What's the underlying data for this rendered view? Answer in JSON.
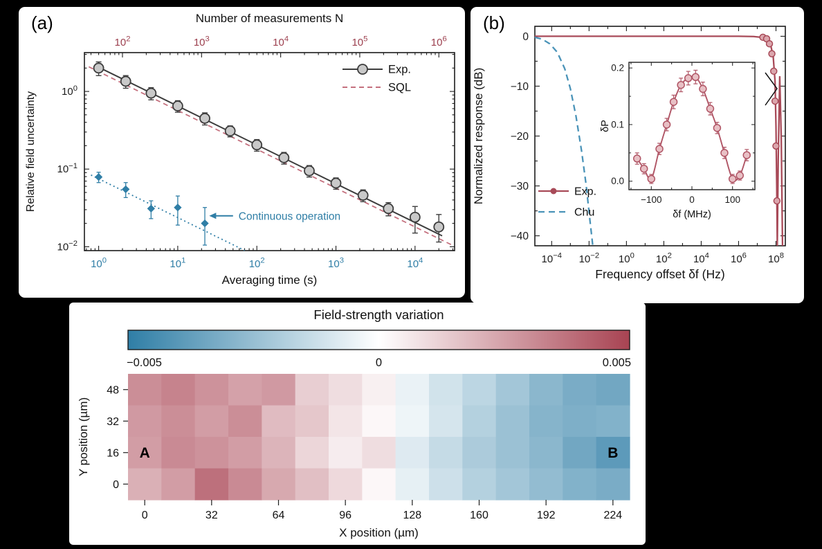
{
  "panels": {
    "a": {
      "label": "(a)"
    },
    "b": {
      "label": "(b)"
    }
  },
  "chart_data": [
    {
      "id": "a",
      "type": "scatter",
      "xlabel": "Averaging time (s)",
      "ylabel": "Relative field uncertainty",
      "top_axis_label": "Number of measurements N",
      "x_scale": "log",
      "y_scale": "log",
      "xlim_log": [
        -0.18,
        4.5
      ],
      "ylim_log": [
        -2.05,
        0.5
      ],
      "x_ticks_exp": [
        0,
        1,
        2,
        3,
        4
      ],
      "y_ticks_exp": [
        0,
        -1,
        -2
      ],
      "top_ticks": {
        "exps": [
          2,
          3,
          4,
          5,
          6
        ],
        "measurements_per_second": 50
      },
      "colors": {
        "time_axis": "#2f7ea6",
        "meas_axis": "#9c3f4e"
      },
      "series": [
        {
          "name": "Exp.",
          "marker": "circle",
          "color": "#3d3d3d",
          "fill": "#c9c9c9",
          "x": [
            1,
            2.2,
            4.6,
            10,
            22,
            46,
            100,
            220,
            460,
            1000,
            2200,
            4600,
            10000,
            20000
          ],
          "y": [
            2.0,
            1.35,
            0.95,
            0.65,
            0.45,
            0.31,
            0.205,
            0.14,
            0.095,
            0.066,
            0.046,
            0.031,
            0.024,
            0.018
          ],
          "yerr": [
            0.4,
            0.25,
            0.17,
            0.11,
            0.08,
            0.05,
            0.035,
            0.024,
            0.016,
            0.011,
            0.008,
            0.006,
            0.009,
            0.008
          ]
        },
        {
          "name": "Continuous",
          "marker": "diamond",
          "color": "#2f7ea6",
          "x": [
            1,
            2.2,
            4.6,
            10,
            22
          ],
          "y": [
            0.079,
            0.055,
            0.031,
            0.032,
            0.02
          ],
          "yerr": [
            0.012,
            0.012,
            0.008,
            0.013,
            0.012
          ]
        }
      ],
      "fit_lines": [
        {
          "name": "Exp fit",
          "style": "solid",
          "color": "#3d3d3d",
          "x": [
            0.9,
            22000
          ],
          "y": [
            2.161,
            0.01382
          ]
        },
        {
          "name": "SQL",
          "style": "dashed",
          "color": "#c4707e",
          "x": [
            0.75,
            30000
          ],
          "y": [
            2.078,
            0.010392
          ]
        },
        {
          "name": "Continuous fit",
          "style": "dotted",
          "color": "#2f7ea6",
          "x": [
            0.8,
            70
          ],
          "y": [
            0.08385,
            0.008964
          ]
        }
      ],
      "annotation": {
        "text": "Continuous operation",
        "color": "#2f7ea6",
        "arrow_tip_t": 25,
        "arrow_end_t": 50,
        "y": 0.025
      },
      "legend": [
        {
          "label": "Exp."
        },
        {
          "label": "SQL"
        }
      ]
    },
    {
      "id": "b",
      "type": "line",
      "xlabel": "Frequency offset δf (Hz)",
      "ylabel": "Normalized response (dB)",
      "x_scale": "log",
      "xlim_log": [
        -4.9,
        8.5
      ],
      "ylim": [
        -42,
        2
      ],
      "x_ticks_exp": [
        -4,
        -2,
        0,
        2,
        4,
        6,
        8
      ],
      "y_ticks": [
        0,
        -10,
        -20,
        -30,
        -40
      ],
      "y_tick_labels": [
        "0",
        "−10",
        "−20",
        "−30",
        "−40"
      ],
      "series": [
        {
          "name": "Exp.",
          "color": "#a84a58",
          "style": "solid",
          "logx": [
            -4.9,
            -2,
            0,
            2,
            4,
            6,
            6.8,
            7.2,
            7.5,
            7.7,
            7.85,
            7.95,
            8.0,
            8.04,
            8.07,
            8.12,
            8.2,
            8.28,
            8.35
          ],
          "y": [
            0,
            0,
            0,
            0,
            0,
            0,
            -0.05,
            -0.2,
            -0.6,
            -1.5,
            -4,
            -9,
            -18,
            -30,
            -42,
            -25,
            -8,
            -20,
            -42
          ]
        },
        {
          "name": "Chu",
          "color": "#4a93b8",
          "style": "dashed",
          "logx": [
            -4.9,
            -4.5,
            -4.1,
            -3.7,
            -3.3,
            -3.0,
            -2.7,
            -2.4,
            -2.15,
            -1.95,
            -1.8
          ],
          "y": [
            -0.2,
            -0.6,
            -1.5,
            -3.2,
            -6.5,
            -10.5,
            -16,
            -23,
            -30,
            -37,
            -42
          ]
        }
      ],
      "markers": {
        "color": "#a84a58",
        "fill": "#dba6ad",
        "logx": [
          7.3,
          7.5,
          7.65,
          7.78,
          7.88,
          7.95,
          8.0,
          8.05
        ],
        "y": [
          -0.2,
          -0.5,
          -1.5,
          -3.5,
          -7,
          -13,
          -22,
          -33
        ]
      },
      "legend": [
        {
          "label": "Exp."
        },
        {
          "label": "Chu"
        }
      ]
    },
    {
      "id": "b_inset",
      "type": "scatter",
      "xlabel": "δf (MHz)",
      "ylabel": "δP",
      "xlim": [
        -155,
        155
      ],
      "ylim": [
        -0.015,
        0.21
      ],
      "x_ticks": [
        -100,
        0,
        100
      ],
      "x_tick_labels": [
        "−100",
        "0",
        "100"
      ],
      "y_ticks": [
        0,
        0.1,
        0.2
      ],
      "y_tick_labels": [
        "0.0",
        "0.1",
        "0.2"
      ],
      "curve_color": "#b05565",
      "points": {
        "color": "#b05565",
        "fill": "#e8c0c5",
        "x": [
          -135,
          -118,
          -100,
          -80,
          -62,
          -45,
          -27,
          -9,
          9,
          27,
          45,
          62,
          80,
          100,
          118,
          135
        ],
        "y": [
          0.04,
          0.022,
          0.004,
          0.057,
          0.1,
          0.14,
          0.17,
          0.182,
          0.184,
          0.163,
          0.128,
          0.094,
          0.05,
          0.004,
          0.01,
          0.046
        ],
        "yerr": [
          0.01,
          0.009,
          0.008,
          0.01,
          0.011,
          0.012,
          0.012,
          0.012,
          0.012,
          0.012,
          0.011,
          0.01,
          0.01,
          0.008,
          0.008,
          0.01
        ]
      }
    },
    {
      "id": "c",
      "type": "heatmap",
      "title": "Field-strength variation",
      "xlabel": "X position (µm)",
      "ylabel": "Y position (µm)",
      "x_tick_values": [
        0,
        32,
        64,
        96,
        128,
        160,
        192,
        224
      ],
      "row_labels": [
        "48",
        "32",
        "16",
        "0"
      ],
      "col_start": 0,
      "col_step": 16,
      "colorbar": {
        "min": -0.005,
        "mid": 0,
        "max": 0.005,
        "tick_labels": [
          "−0.005",
          "0",
          "0.005"
        ],
        "blue": "#2f7ea6",
        "red": "#a84352"
      },
      "corner_labels": {
        "left": "A",
        "right": "B"
      },
      "values": [
        [
          0.003,
          0.0033,
          0.0029,
          0.0025,
          0.0027,
          0.0013,
          0.0009,
          0.0004,
          -0.0005,
          -0.0011,
          -0.0016,
          -0.0022,
          -0.0028,
          -0.0032,
          -0.0034
        ],
        [
          0.0027,
          0.003,
          0.0026,
          0.003,
          0.0018,
          0.0015,
          0.0007,
          0.0002,
          -0.0004,
          -0.001,
          -0.0018,
          -0.0024,
          -0.0029,
          -0.0031,
          -0.003
        ],
        [
          0.0026,
          0.0031,
          0.0029,
          0.0026,
          0.002,
          0.0011,
          0.0005,
          0.0009,
          -0.0008,
          -0.0014,
          -0.002,
          -0.0024,
          -0.0028,
          -0.0034,
          -0.0039
        ],
        [
          0.0021,
          0.0026,
          0.0038,
          0.0031,
          0.0023,
          0.0017,
          0.001,
          0.0002,
          -0.0006,
          -0.0012,
          -0.0018,
          -0.0022,
          -0.0026,
          -0.003,
          -0.0032
        ]
      ]
    }
  ]
}
